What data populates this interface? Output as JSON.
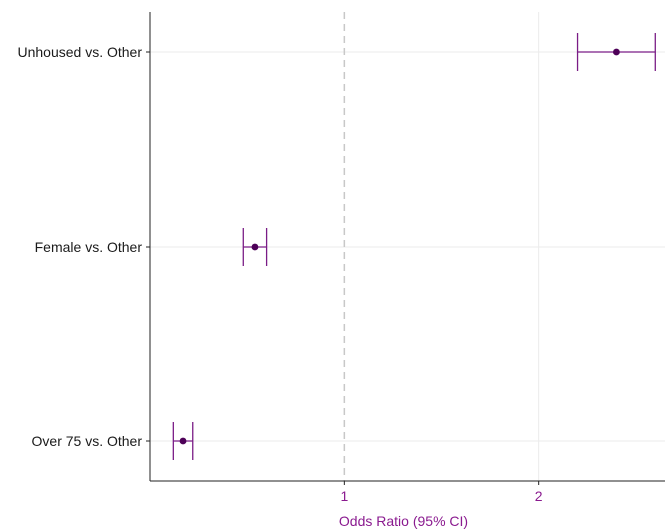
{
  "chart_data": {
    "type": "forest",
    "title": "",
    "xlabel": "Odds Ratio (95% CI)",
    "ylabel": "",
    "xlim": [
      0.0,
      2.65
    ],
    "x_ticks": [
      1,
      2
    ],
    "x_tick_labels": [
      "1",
      "2"
    ],
    "reference_line": 1,
    "grid": true,
    "categories": [
      "Unhoused vs. Other",
      "Female vs. Other",
      "Over 75 vs. Other"
    ],
    "estimates": [
      {
        "label": "Unhoused vs. Other",
        "or": 2.4,
        "ci_low": 2.2,
        "ci_high": 2.6
      },
      {
        "label": "Female vs. Other",
        "or": 0.54,
        "ci_low": 0.48,
        "ci_high": 0.6
      },
      {
        "label": "Over 75 vs. Other",
        "or": 0.17,
        "ci_low": 0.12,
        "ci_high": 0.22
      }
    ]
  },
  "colors": {
    "point": "#4d0057",
    "errorbar": "#7a1c86",
    "axis_text": "#8a1a8f",
    "grid": "#ebebeb",
    "refline": "#c8c8c8",
    "axis": "#222222"
  }
}
